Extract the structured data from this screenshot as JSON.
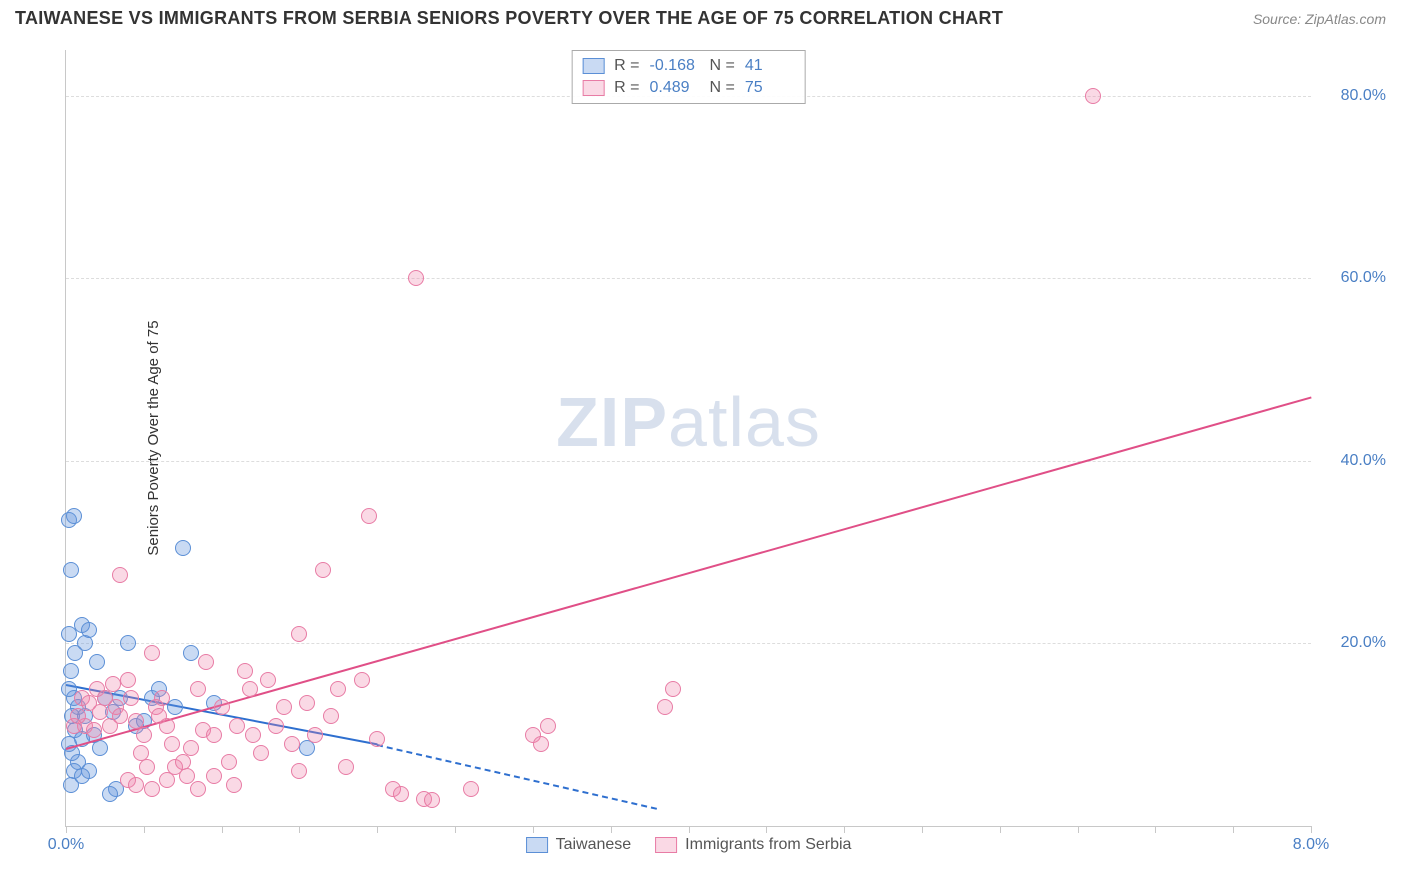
{
  "header": {
    "title": "TAIWANESE VS IMMIGRANTS FROM SERBIA SENIORS POVERTY OVER THE AGE OF 75 CORRELATION CHART",
    "source": "Source: ZipAtlas.com"
  },
  "watermark": {
    "zip": "ZIP",
    "atlas": "atlas"
  },
  "chart": {
    "type": "scatter",
    "y_axis_label": "Seniors Poverty Over the Age of 75",
    "xlim": [
      0,
      8.0
    ],
    "ylim": [
      0,
      85
    ],
    "x_tick_positions": [
      0,
      0.5,
      1.0,
      1.5,
      2.0,
      2.5,
      3.0,
      3.5,
      4.0,
      4.5,
      5.0,
      5.5,
      6.0,
      6.5,
      7.0,
      7.5,
      8.0
    ],
    "x_tick_labels": {
      "0": "0.0%",
      "8": "8.0%"
    },
    "y_grid_positions": [
      20,
      40,
      60,
      80
    ],
    "y_tick_labels": {
      "20": "20.0%",
      "40": "40.0%",
      "60": "60.0%",
      "80": "80.0%"
    },
    "axis_label_color": "#4a7fc4",
    "axis_label_fontsize": 16,
    "title_fontsize": 18,
    "grid_color": "#dddddd",
    "border_color": "#c8c8c8",
    "background_color": "#ffffff",
    "point_radius": 8,
    "point_border_width": 1.5,
    "point_fill_opacity": 0.35,
    "line_width": 2
  },
  "series": [
    {
      "name": "Taiwanese",
      "color_fill": "rgba(99,148,222,0.35)",
      "color_stroke": "#5b8fd6",
      "line_color": "#2e6fcf",
      "R": "-0.168",
      "N": "41",
      "trend": {
        "x1": 0.0,
        "y1": 15.5,
        "x2": 2.0,
        "y2": 9.0,
        "x2_dash": 3.8,
        "y2_dash": 2.0
      },
      "points": [
        [
          0.02,
          33.5
        ],
        [
          0.05,
          34
        ],
        [
          0.03,
          28
        ],
        [
          0.1,
          22
        ],
        [
          0.02,
          21
        ],
        [
          0.06,
          19
        ],
        [
          0.03,
          17
        ],
        [
          0.12,
          20
        ],
        [
          0.05,
          14
        ],
        [
          0.08,
          13
        ],
        [
          0.02,
          15
        ],
        [
          0.15,
          21.5
        ],
        [
          0.2,
          18
        ],
        [
          0.04,
          12
        ],
        [
          0.06,
          10.5
        ],
        [
          0.1,
          9.5
        ],
        [
          0.12,
          12
        ],
        [
          0.25,
          14
        ],
        [
          0.3,
          12.5
        ],
        [
          0.35,
          14
        ],
        [
          0.18,
          10
        ],
        [
          0.22,
          8.5
        ],
        [
          0.08,
          7
        ],
        [
          0.05,
          6
        ],
        [
          0.15,
          6
        ],
        [
          0.4,
          20
        ],
        [
          0.45,
          11
        ],
        [
          0.55,
          14
        ],
        [
          0.5,
          11.5
        ],
        [
          0.6,
          15
        ],
        [
          0.75,
          30.5
        ],
        [
          0.7,
          13
        ],
        [
          0.8,
          19
        ],
        [
          0.32,
          4
        ],
        [
          0.28,
          3.5
        ],
        [
          0.02,
          9
        ],
        [
          0.03,
          4.5
        ],
        [
          0.1,
          5.5
        ],
        [
          0.04,
          8
        ],
        [
          1.55,
          8.5
        ],
        [
          0.95,
          13.5
        ]
      ]
    },
    {
      "name": "Immigrants from Serbia",
      "color_fill": "rgba(240,130,170,0.30)",
      "color_stroke": "#e87ca5",
      "line_color": "#e04f87",
      "R": "0.489",
      "N": "75",
      "trend": {
        "x1": 0.0,
        "y1": 8.5,
        "x2": 8.0,
        "y2": 47
      },
      "points": [
        [
          2.25,
          60
        ],
        [
          6.6,
          80
        ],
        [
          1.95,
          34
        ],
        [
          1.65,
          28
        ],
        [
          1.5,
          21
        ],
        [
          0.35,
          27.5
        ],
        [
          0.1,
          14
        ],
        [
          0.15,
          13.5
        ],
        [
          0.2,
          15
        ],
        [
          0.25,
          14
        ],
        [
          0.3,
          15.5
        ],
        [
          0.32,
          13
        ],
        [
          0.35,
          12
        ],
        [
          0.4,
          16
        ],
        [
          0.42,
          14
        ],
        [
          0.45,
          11.5
        ],
        [
          0.5,
          10
        ],
        [
          0.55,
          19
        ],
        [
          0.58,
          13
        ],
        [
          0.6,
          12
        ],
        [
          0.62,
          14
        ],
        [
          0.65,
          11
        ],
        [
          0.68,
          9
        ],
        [
          0.7,
          6.5
        ],
        [
          0.75,
          7
        ],
        [
          0.78,
          5.5
        ],
        [
          0.8,
          8.5
        ],
        [
          0.85,
          15
        ],
        [
          0.88,
          10.5
        ],
        [
          0.9,
          18
        ],
        [
          0.95,
          10
        ],
        [
          1.0,
          13
        ],
        [
          1.05,
          7
        ],
        [
          1.1,
          11
        ],
        [
          1.15,
          17
        ],
        [
          1.18,
          15
        ],
        [
          1.2,
          10
        ],
        [
          1.25,
          8
        ],
        [
          1.3,
          16
        ],
        [
          1.35,
          11
        ],
        [
          1.4,
          13
        ],
        [
          1.45,
          9
        ],
        [
          1.5,
          6
        ],
        [
          1.55,
          13.5
        ],
        [
          1.6,
          10
        ],
        [
          1.7,
          12
        ],
        [
          1.75,
          15
        ],
        [
          1.8,
          6.5
        ],
        [
          1.9,
          16
        ],
        [
          2.0,
          9.5
        ],
        [
          2.1,
          4
        ],
        [
          2.15,
          3.5
        ],
        [
          2.3,
          3
        ],
        [
          2.35,
          2.8
        ],
        [
          2.6,
          4
        ],
        [
          3.0,
          10
        ],
        [
          3.05,
          9
        ],
        [
          3.1,
          11
        ],
        [
          3.85,
          13
        ],
        [
          3.9,
          15
        ],
        [
          0.12,
          11
        ],
        [
          0.18,
          10.5
        ],
        [
          0.22,
          12.5
        ],
        [
          0.28,
          11
        ],
        [
          0.48,
          8
        ],
        [
          0.52,
          6.5
        ],
        [
          0.95,
          5.5
        ],
        [
          1.08,
          4.5
        ],
        [
          0.05,
          11
        ],
        [
          0.08,
          12
        ],
        [
          0.4,
          5
        ],
        [
          0.65,
          5
        ],
        [
          0.45,
          4.5
        ],
        [
          0.55,
          4
        ],
        [
          0.85,
          4
        ]
      ]
    }
  ],
  "legend": {
    "stats_labels": {
      "R": "R =",
      "N": "N ="
    },
    "bottom": [
      {
        "label": "Taiwanese"
      },
      {
        "label": "Immigrants from Serbia"
      }
    ]
  }
}
